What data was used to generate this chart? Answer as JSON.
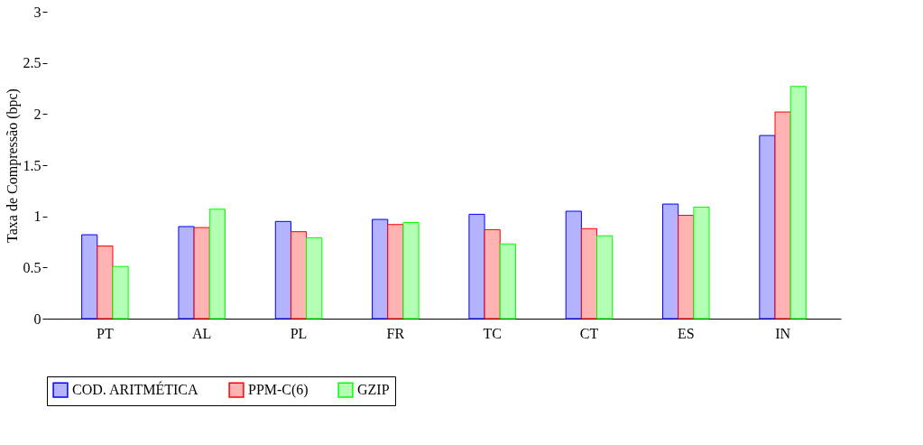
{
  "chart_data": {
    "type": "bar",
    "ylabel": "Taxa de Compressão (bpc)",
    "categories": [
      "PT",
      "AL",
      "PL",
      "FR",
      "TC",
      "CT",
      "ES",
      "IN"
    ],
    "series": [
      {
        "name": "COD. ARITMÉTICA",
        "color": "#b3b3ff",
        "values": [
          0.82,
          0.9,
          0.95,
          0.97,
          1.02,
          1.05,
          1.12,
          1.79
        ]
      },
      {
        "name": "PPM-C(6)",
        "color": "#ffb3b3",
        "values": [
          0.71,
          0.89,
          0.85,
          0.92,
          0.87,
          0.88,
          1.01,
          2.02
        ]
      },
      {
        "name": "GZIP",
        "color": "#b3ffb3",
        "values": [
          0.51,
          1.07,
          0.79,
          0.94,
          0.73,
          0.81,
          1.09,
          2.27
        ]
      }
    ],
    "ylim": [
      0,
      3
    ],
    "yticks": [
      0,
      0.5,
      1,
      1.5,
      2,
      2.5,
      3
    ],
    "grid": false,
    "legend": "bottom"
  }
}
